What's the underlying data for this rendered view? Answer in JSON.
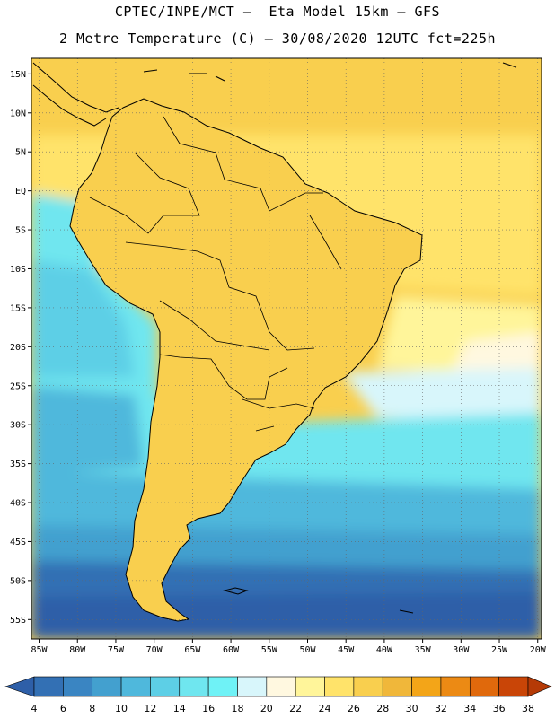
{
  "header": {
    "line1": "CPTEC/INPE/MCT –  Eta Model 15km – GFS",
    "line2": "2 Metre Temperature (C) – 30/08/2020 12UTC fct=225h"
  },
  "map": {
    "variable": "2 Metre Temperature",
    "units": "C",
    "lon_range": [
      -86,
      -19.5
    ],
    "lat_range": [
      -57.5,
      17
    ],
    "y_ticks": [
      "15N",
      "10N",
      "5N",
      "EQ",
      "5S",
      "10S",
      "15S",
      "20S",
      "25S",
      "30S",
      "35S",
      "40S",
      "45S",
      "50S",
      "55S"
    ],
    "x_ticks": [
      "85W",
      "80W",
      "75W",
      "70W",
      "65W",
      "60W",
      "55W",
      "50W",
      "45W",
      "40W",
      "35W",
      "30W",
      "25W",
      "20W"
    ]
  },
  "legend": {
    "ticks": [
      "4",
      "6",
      "8",
      "10",
      "12",
      "14",
      "16",
      "18",
      "20",
      "22",
      "24",
      "26",
      "28",
      "30",
      "32",
      "34",
      "36",
      "38"
    ],
    "colors": [
      "#2e5fa8",
      "#3370b4",
      "#3a85c2",
      "#43a0cf",
      "#4fb8dc",
      "#5dcfe6",
      "#6fe6ef",
      "#6ff2f6",
      "#d8f6fb",
      "#fff8e0",
      "#fff59a",
      "#ffe36a",
      "#f9cf4e",
      "#f0b73a",
      "#f3a518",
      "#ec8a14",
      "#e0690c",
      "#c94507",
      "#b53a06"
    ]
  }
}
